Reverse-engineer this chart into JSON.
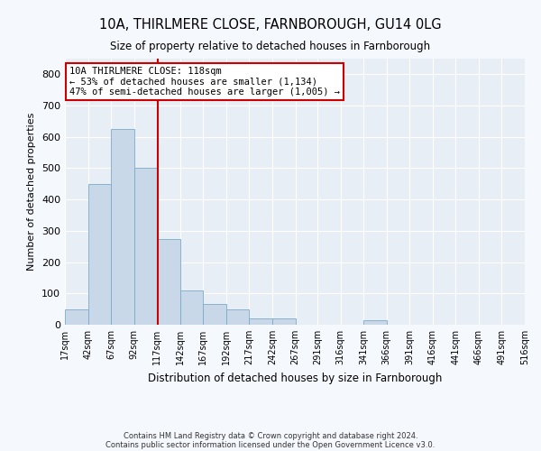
{
  "title": "10A, THIRLMERE CLOSE, FARNBOROUGH, GU14 0LG",
  "subtitle": "Size of property relative to detached houses in Farnborough",
  "xlabel": "Distribution of detached houses by size in Farnborough",
  "ylabel": "Number of detached properties",
  "bar_color": "#c8d8e8",
  "bar_edge_color": "#7aaac8",
  "background_color": "#e8eef5",
  "grid_color": "#ffffff",
  "fig_background": "#f5f8fc",
  "vline_x": 118,
  "vline_color": "#cc0000",
  "bin_edges": [
    17,
    42,
    67,
    92,
    117,
    142,
    167,
    192,
    217,
    242,
    267,
    291,
    316,
    341,
    366,
    391,
    416,
    441,
    466,
    491,
    516
  ],
  "bar_heights": [
    50,
    450,
    625,
    500,
    275,
    110,
    65,
    50,
    20,
    20,
    0,
    0,
    0,
    15,
    0,
    0,
    0,
    0,
    0,
    0
  ],
  "ylim": [
    0,
    850
  ],
  "yticks": [
    0,
    100,
    200,
    300,
    400,
    500,
    600,
    700,
    800
  ],
  "annotation_text": "10A THIRLMERE CLOSE: 118sqm\n← 53% of detached houses are smaller (1,134)\n47% of semi-detached houses are larger (1,005) →",
  "annotation_box_color": "#ffffff",
  "annotation_box_edge_color": "#cc0000",
  "footer_line1": "Contains HM Land Registry data © Crown copyright and database right 2024.",
  "footer_line2": "Contains public sector information licensed under the Open Government Licence v3.0.",
  "tick_labels": [
    "17sqm",
    "42sqm",
    "67sqm",
    "92sqm",
    "117sqm",
    "142sqm",
    "167sqm",
    "192sqm",
    "217sqm",
    "242sqm",
    "267sqm",
    "291sqm",
    "316sqm",
    "341sqm",
    "366sqm",
    "391sqm",
    "416sqm",
    "441sqm",
    "466sqm",
    "491sqm",
    "516sqm"
  ]
}
